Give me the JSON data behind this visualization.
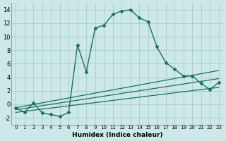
{
  "xlabel": "Humidex (Indice chaleur)",
  "background_color": "#cce8e8",
  "grid_color": "#aacccc",
  "line_color": "#1a7060",
  "xlim": [
    -0.5,
    23.5
  ],
  "ylim": [
    -3,
    15
  ],
  "xticks": [
    0,
    1,
    2,
    3,
    4,
    5,
    6,
    7,
    8,
    9,
    10,
    11,
    12,
    13,
    14,
    15,
    16,
    17,
    18,
    19,
    20,
    21,
    22,
    23
  ],
  "yticks": [
    -2,
    0,
    2,
    4,
    6,
    8,
    10,
    12,
    14
  ],
  "curve1_x": [
    0,
    1,
    2,
    3,
    4,
    5,
    6,
    7,
    8,
    9,
    10,
    11,
    12,
    13,
    14,
    15,
    16,
    17,
    18,
    19,
    20,
    21,
    22,
    23
  ],
  "curve1_y": [
    -0.5,
    -1.2,
    0.2,
    -1.3,
    -1.5,
    -1.8,
    -1.2,
    8.8,
    4.8,
    11.3,
    11.7,
    13.3,
    13.8,
    14.0,
    12.8,
    12.2,
    8.5,
    6.2,
    5.2,
    4.2,
    4.2,
    3.1,
    2.2,
    3.2
  ],
  "line2_x": [
    0,
    23
  ],
  "line2_y": [
    -0.5,
    5.0
  ],
  "line3_x": [
    0,
    23
  ],
  "line3_y": [
    -0.8,
    3.8
  ],
  "line4_x": [
    0,
    23
  ],
  "line4_y": [
    -1.2,
    2.5
  ]
}
